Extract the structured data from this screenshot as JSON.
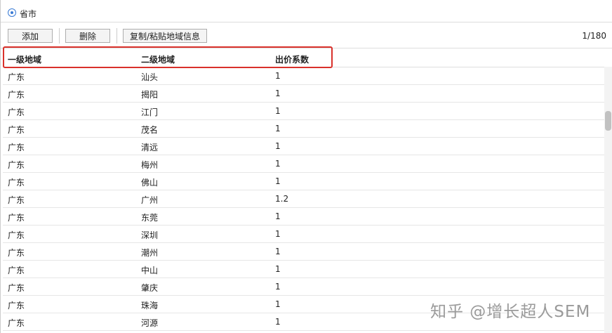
{
  "region_option": "省市",
  "toolbar": {
    "buttons": [
      "添加",
      "删除",
      "复制/粘贴地域信息"
    ],
    "counter": "1/180"
  },
  "table": {
    "headers": [
      "一级地域",
      "二级地域",
      "出价系数"
    ],
    "rows": [
      [
        "广东",
        "汕头",
        "1"
      ],
      [
        "广东",
        "揭阳",
        "1"
      ],
      [
        "广东",
        "江门",
        "1"
      ],
      [
        "广东",
        "茂名",
        "1"
      ],
      [
        "广东",
        "清远",
        "1"
      ],
      [
        "广东",
        "梅州",
        "1"
      ],
      [
        "广东",
        "佛山",
        "1"
      ],
      [
        "广东",
        "广州",
        "1.2"
      ],
      [
        "广东",
        "东莞",
        "1"
      ],
      [
        "广东",
        "深圳",
        "1"
      ],
      [
        "广东",
        "潮州",
        "1"
      ],
      [
        "广东",
        "中山",
        "1"
      ],
      [
        "广东",
        "肇庆",
        "1"
      ],
      [
        "广东",
        "珠海",
        "1"
      ],
      [
        "广东",
        "河源",
        "1"
      ]
    ]
  },
  "watermark": "知乎 @增长超人SEM"
}
